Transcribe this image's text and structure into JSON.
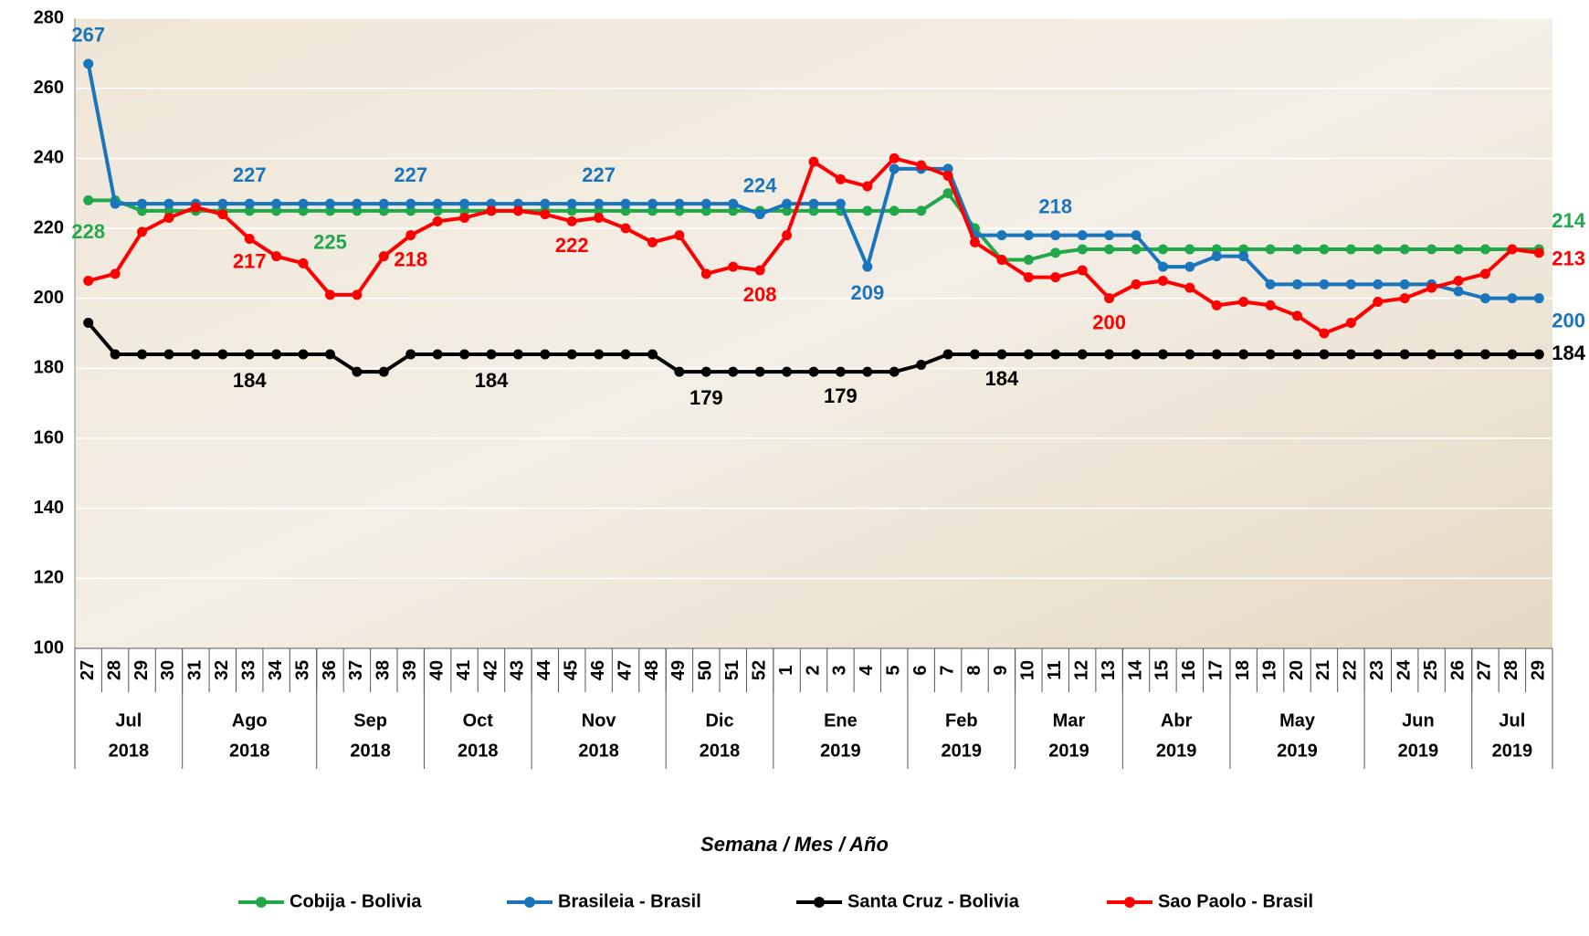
{
  "chart_data": {
    "type": "line",
    "x_label": "Semana / Mes / Año",
    "categories": [
      [
        "27",
        "Jul",
        "2018"
      ],
      [
        "28",
        "Jul",
        "2018"
      ],
      [
        "29",
        "Jul",
        "2018"
      ],
      [
        "30",
        "Jul",
        "2018"
      ],
      [
        "31",
        "Ago",
        "2018"
      ],
      [
        "32",
        "Ago",
        "2018"
      ],
      [
        "33",
        "Ago",
        "2018"
      ],
      [
        "34",
        "Ago",
        "2018"
      ],
      [
        "35",
        "Ago",
        "2018"
      ],
      [
        "36",
        "Sep",
        "2018"
      ],
      [
        "37",
        "Sep",
        "2018"
      ],
      [
        "38",
        "Sep",
        "2018"
      ],
      [
        "39",
        "Sep",
        "2018"
      ],
      [
        "40",
        "Oct",
        "2018"
      ],
      [
        "41",
        "Oct",
        "2018"
      ],
      [
        "42",
        "Oct",
        "2018"
      ],
      [
        "43",
        "Oct",
        "2018"
      ],
      [
        "44",
        "Nov",
        "2018"
      ],
      [
        "45",
        "Nov",
        "2018"
      ],
      [
        "46",
        "Nov",
        "2018"
      ],
      [
        "47",
        "Nov",
        "2018"
      ],
      [
        "48",
        "Nov",
        "2018"
      ],
      [
        "49",
        "Dic",
        "2018"
      ],
      [
        "50",
        "Dic",
        "2018"
      ],
      [
        "51",
        "Dic",
        "2018"
      ],
      [
        "52",
        "Dic",
        "2018"
      ],
      [
        "1",
        "Ene",
        "2019"
      ],
      [
        "2",
        "Ene",
        "2019"
      ],
      [
        "3",
        "Ene",
        "2019"
      ],
      [
        "4",
        "Ene",
        "2019"
      ],
      [
        "5",
        "Ene",
        "2019"
      ],
      [
        "6",
        "Feb",
        "2019"
      ],
      [
        "7",
        "Feb",
        "2019"
      ],
      [
        "8",
        "Feb",
        "2019"
      ],
      [
        "9",
        "Feb",
        "2019"
      ],
      [
        "10",
        "Mar",
        "2019"
      ],
      [
        "11",
        "Mar",
        "2019"
      ],
      [
        "12",
        "Mar",
        "2019"
      ],
      [
        "13",
        "Mar",
        "2019"
      ],
      [
        "14",
        "Abr",
        "2019"
      ],
      [
        "15",
        "Abr",
        "2019"
      ],
      [
        "16",
        "Abr",
        "2019"
      ],
      [
        "17",
        "Abr",
        "2019"
      ],
      [
        "18",
        "May",
        "2019"
      ],
      [
        "19",
        "May",
        "2019"
      ],
      [
        "20",
        "May",
        "2019"
      ],
      [
        "21",
        "May",
        "2019"
      ],
      [
        "22",
        "May",
        "2019"
      ],
      [
        "23",
        "Jun",
        "2019"
      ],
      [
        "24",
        "Jun",
        "2019"
      ],
      [
        "25",
        "Jun",
        "2019"
      ],
      [
        "26",
        "Jun",
        "2019"
      ],
      [
        "27",
        "Jul",
        "2019"
      ],
      [
        "28",
        "Jul",
        "2019"
      ],
      [
        "29",
        "Jul",
        "2019"
      ]
    ],
    "series": [
      {
        "name": "Cobija - Bolivia",
        "color": "#21a84a",
        "values": [
          228,
          228,
          225,
          225,
          225,
          225,
          225,
          225,
          225,
          225,
          225,
          225,
          225,
          225,
          225,
          225,
          225,
          225,
          225,
          225,
          225,
          225,
          225,
          225,
          225,
          225,
          225,
          225,
          225,
          225,
          225,
          225,
          230,
          220,
          211,
          211,
          213,
          214,
          214,
          214,
          214,
          214,
          214,
          214,
          214,
          214,
          214,
          214,
          214,
          214,
          214,
          214,
          214,
          214,
          214
        ]
      },
      {
        "name": "Brasileia - Brasil",
        "color": "#1a75bc",
        "values": [
          267,
          227,
          227,
          227,
          227,
          227,
          227,
          227,
          227,
          227,
          227,
          227,
          227,
          227,
          227,
          227,
          227,
          227,
          227,
          227,
          227,
          227,
          227,
          227,
          227,
          224,
          227,
          227,
          227,
          209,
          237,
          237,
          237,
          218,
          218,
          218,
          218,
          218,
          218,
          218,
          209,
          209,
          212,
          212,
          204,
          204,
          204,
          204,
          204,
          204,
          204,
          202,
          200,
          200,
          200
        ]
      },
      {
        "name": "Santa Cruz - Bolivia",
        "color": "#000000",
        "values": [
          193,
          184,
          184,
          184,
          184,
          184,
          184,
          184,
          184,
          184,
          179,
          179,
          184,
          184,
          184,
          184,
          184,
          184,
          184,
          184,
          184,
          184,
          179,
          179,
          179,
          179,
          179,
          179,
          179,
          179,
          179,
          181,
          184,
          184,
          184,
          184,
          184,
          184,
          184,
          184,
          184,
          184,
          184,
          184,
          184,
          184,
          184,
          184,
          184,
          184,
          184,
          184,
          184,
          184,
          184
        ]
      },
      {
        "name": "Sao Paolo - Brasil",
        "color": "#ff0000",
        "values": [
          205,
          207,
          219,
          223,
          226,
          224,
          217,
          212,
          210,
          201,
          201,
          212,
          218,
          222,
          223,
          225,
          225,
          224,
          222,
          223,
          220,
          216,
          218,
          207,
          209,
          208,
          218,
          239,
          234,
          232,
          240,
          238,
          235,
          216,
          211,
          206,
          206,
          208,
          200,
          204,
          205,
          203,
          198,
          199,
          198,
          195,
          190,
          193,
          199,
          200,
          203,
          205,
          207,
          214,
          213
        ]
      }
    ],
    "ylim": [
      100,
      280
    ],
    "yticks": [
      100,
      120,
      140,
      160,
      180,
      200,
      220,
      240,
      260,
      280
    ],
    "grid": true,
    "legend": "bottom"
  }
}
